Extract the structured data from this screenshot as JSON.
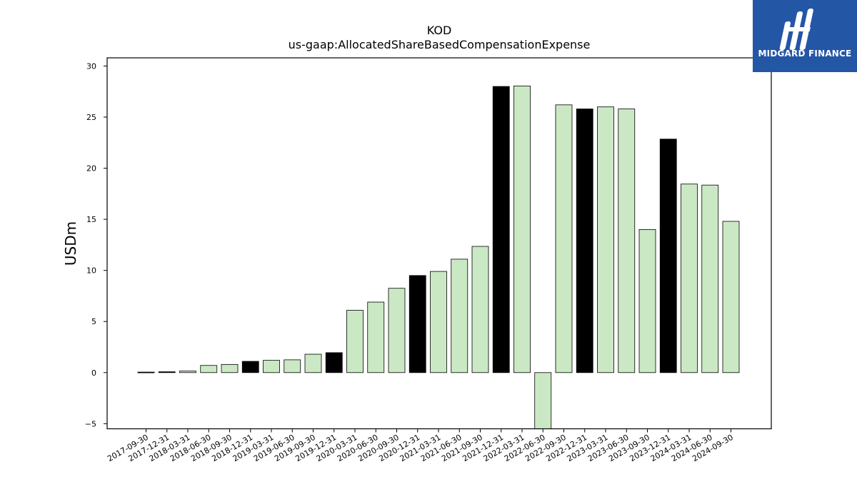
{
  "chart_data": {
    "type": "bar",
    "title": "KOD",
    "subtitle": "us-gaap:AllocatedShareBasedCompensationExpense",
    "xlabel": "",
    "ylabel": "USDm",
    "ylim": [
      -5.5,
      30.8
    ],
    "yticks": [
      -5,
      0,
      5,
      10,
      15,
      20,
      25,
      30
    ],
    "grid": false,
    "categories": [
      "2017-09-30",
      "2017-12-31",
      "2018-03-31",
      "2018-06-30",
      "2018-09-30",
      "2018-12-31",
      "2019-03-31",
      "2019-06-30",
      "2019-09-30",
      "2019-12-31",
      "2020-03-31",
      "2020-06-30",
      "2020-09-30",
      "2020-12-31",
      "2021-03-31",
      "2021-06-30",
      "2021-09-30",
      "2021-12-31",
      "2022-03-31",
      "2022-06-30",
      "2022-09-30",
      "2022-12-31",
      "2023-03-31",
      "2023-06-30",
      "2023-09-30",
      "2023-12-31",
      "2024-03-31",
      "2024-06-30",
      "2024-09-30"
    ],
    "values": [
      0.05,
      0.08,
      0.15,
      0.7,
      0.8,
      1.1,
      1.2,
      1.25,
      1.8,
      1.95,
      6.1,
      6.9,
      8.25,
      9.5,
      9.9,
      11.1,
      12.35,
      28.0,
      28.05,
      -5.5,
      26.2,
      25.8,
      26.0,
      25.8,
      14.0,
      22.85,
      18.45,
      18.35,
      14.8
    ],
    "bar_colors": [
      "#000000",
      "#000000",
      "#cbe8c4",
      "#cbe8c4",
      "#cbe8c4",
      "#000000",
      "#cbe8c4",
      "#cbe8c4",
      "#cbe8c4",
      "#000000",
      "#cbe8c4",
      "#cbe8c4",
      "#cbe8c4",
      "#000000",
      "#cbe8c4",
      "#cbe8c4",
      "#cbe8c4",
      "#000000",
      "#cbe8c4",
      "#cbe8c4",
      "#cbe8c4",
      "#000000",
      "#cbe8c4",
      "#cbe8c4",
      "#cbe8c4",
      "#000000",
      "#cbe8c4",
      "#cbe8c4",
      "#cbe8c4"
    ],
    "edge_color": "#000000"
  },
  "logo": {
    "text": "MIDGARD FINANCE",
    "background": "#2456a6",
    "foreground": "#ffffff"
  }
}
